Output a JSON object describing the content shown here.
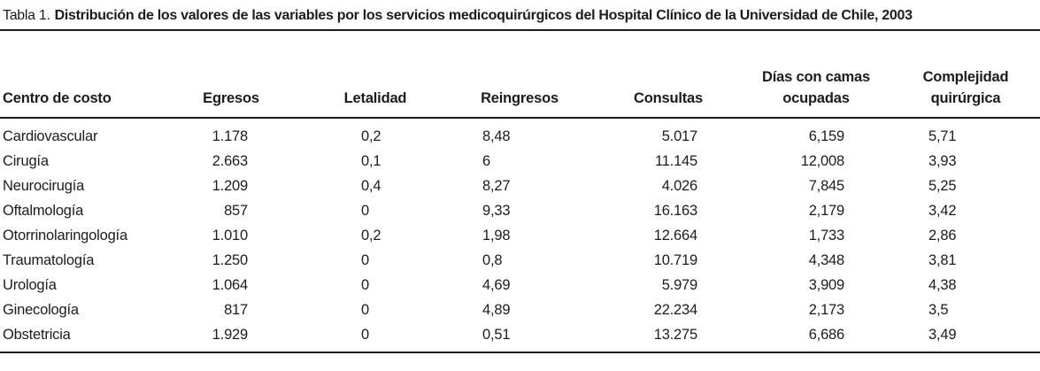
{
  "title": {
    "label": "Tabla 1.",
    "text": "Distribución de los valores de las variables por los servicios medicoquirúrgicos del Hospital Clínico de la Universidad de Chile, 2003"
  },
  "table": {
    "columns": [
      "Centro de costo",
      "Egresos",
      "Letalidad",
      "Reingresos",
      "Consultas",
      "Días con camas\nocupadas",
      "Complejidad\nquirúrgica"
    ],
    "rows": [
      [
        "Cardiovascular",
        "1.178",
        "0,2",
        "8,48",
        "5.017",
        "6,159",
        "5,71"
      ],
      [
        "Cirugía",
        "2.663",
        "0,1",
        "6",
        "11.145",
        "12,008",
        "3,93"
      ],
      [
        "Neurocirugía",
        "1.209",
        "0,4",
        "8,27",
        "4.026",
        "7,845",
        "5,25"
      ],
      [
        "Oftalmología",
        "857",
        "0",
        "9,33",
        "16.163",
        "2,179",
        "3,42"
      ],
      [
        "Otorrinolaringología",
        "1.010",
        "0,2",
        "1,98",
        "12.664",
        "1,733",
        "2,86"
      ],
      [
        "Traumatología",
        "1.250",
        "0",
        "0,8",
        "10.719",
        "4,348",
        "3,81"
      ],
      [
        "Urología",
        "1.064",
        "0",
        "4,69",
        "5.979",
        "3,909",
        "4,38"
      ],
      [
        "Ginecología",
        "817",
        "0",
        "4,89",
        "22.234",
        "2,173",
        "3,5"
      ],
      [
        "Obstetricia",
        "1.929",
        "0",
        "0,51",
        "13.275",
        "6,686",
        "3,49"
      ]
    ]
  },
  "colors": {
    "text": "#1c1c1c",
    "rule": "#1a1a1a",
    "background": "#ffffff"
  }
}
